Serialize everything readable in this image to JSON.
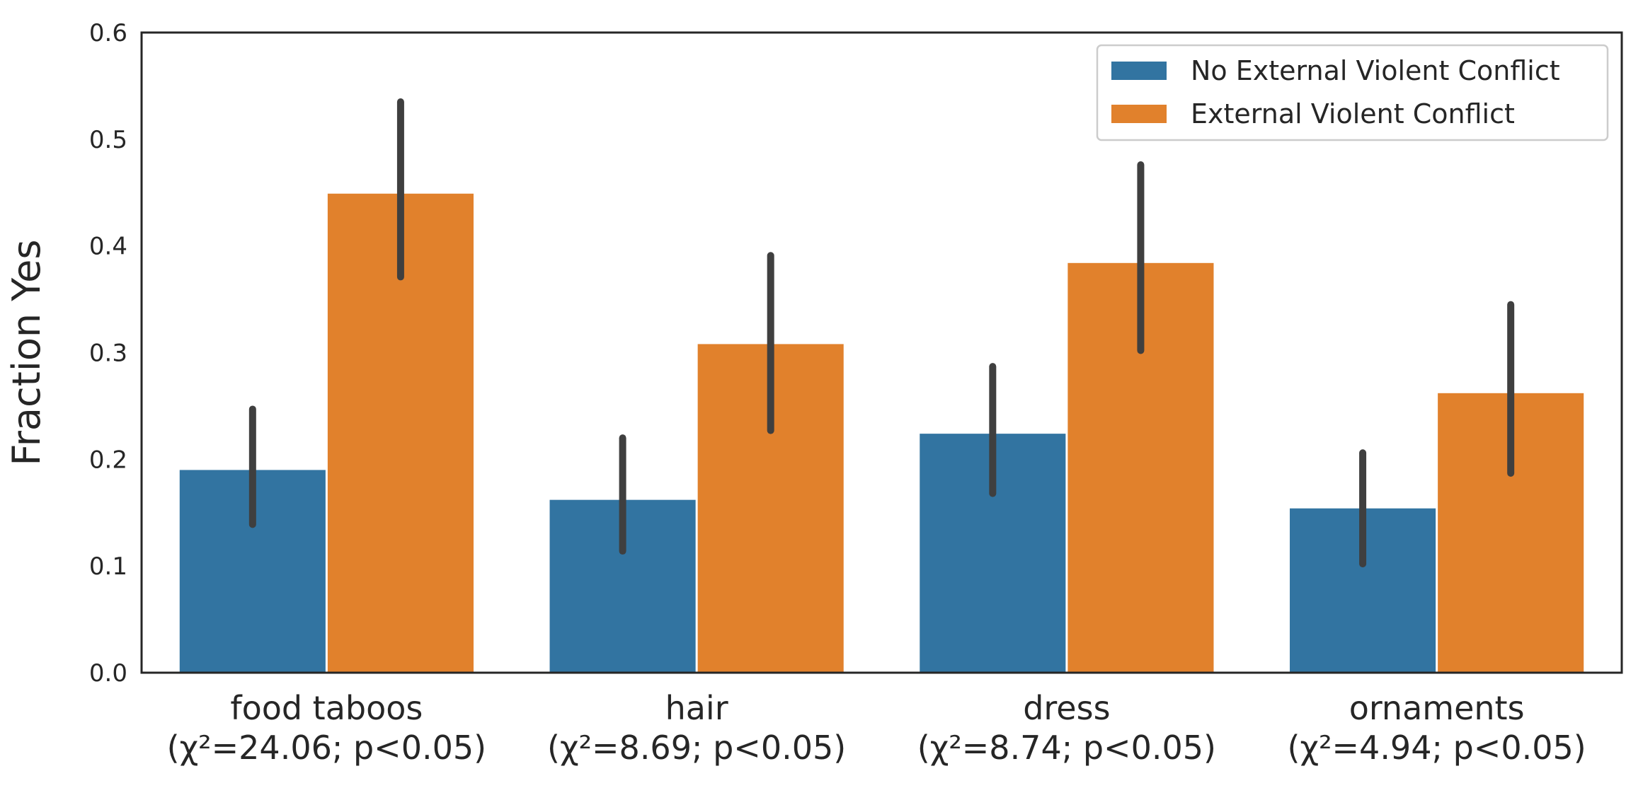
{
  "chart_data": {
    "type": "bar",
    "title": "",
    "xlabel": "",
    "ylabel": "Fraction Yes",
    "ylim": [
      0,
      0.6
    ],
    "yticks": [
      "0.0",
      "0.1",
      "0.2",
      "0.3",
      "0.4",
      "0.5",
      "0.6"
    ],
    "grid": false,
    "legend_position": "top-right",
    "categories": [
      {
        "name": "food taboos",
        "stat": "(χ²=24.06; p<0.05)"
      },
      {
        "name": "hair",
        "stat": "(χ²=8.69; p<0.05)"
      },
      {
        "name": "dress",
        "stat": "(χ²=8.74; p<0.05)"
      },
      {
        "name": "ornaments",
        "stat": "(χ²=4.94; p<0.05)"
      }
    ],
    "series": [
      {
        "name": "No External Violent Conflict",
        "color": "#3274a1",
        "values": [
          0.19,
          0.162,
          0.224,
          0.154
        ],
        "error_low": [
          0.139,
          0.114,
          0.168,
          0.102
        ],
        "error_high": [
          0.247,
          0.22,
          0.287,
          0.206
        ]
      },
      {
        "name": "External Violent Conflict",
        "color": "#e1812c",
        "values": [
          0.449,
          0.308,
          0.384,
          0.262
        ],
        "error_low": [
          0.371,
          0.227,
          0.302,
          0.187
        ],
        "error_high": [
          0.535,
          0.391,
          0.476,
          0.345
        ]
      }
    ],
    "error_bar_color": "#3f3f3f"
  }
}
